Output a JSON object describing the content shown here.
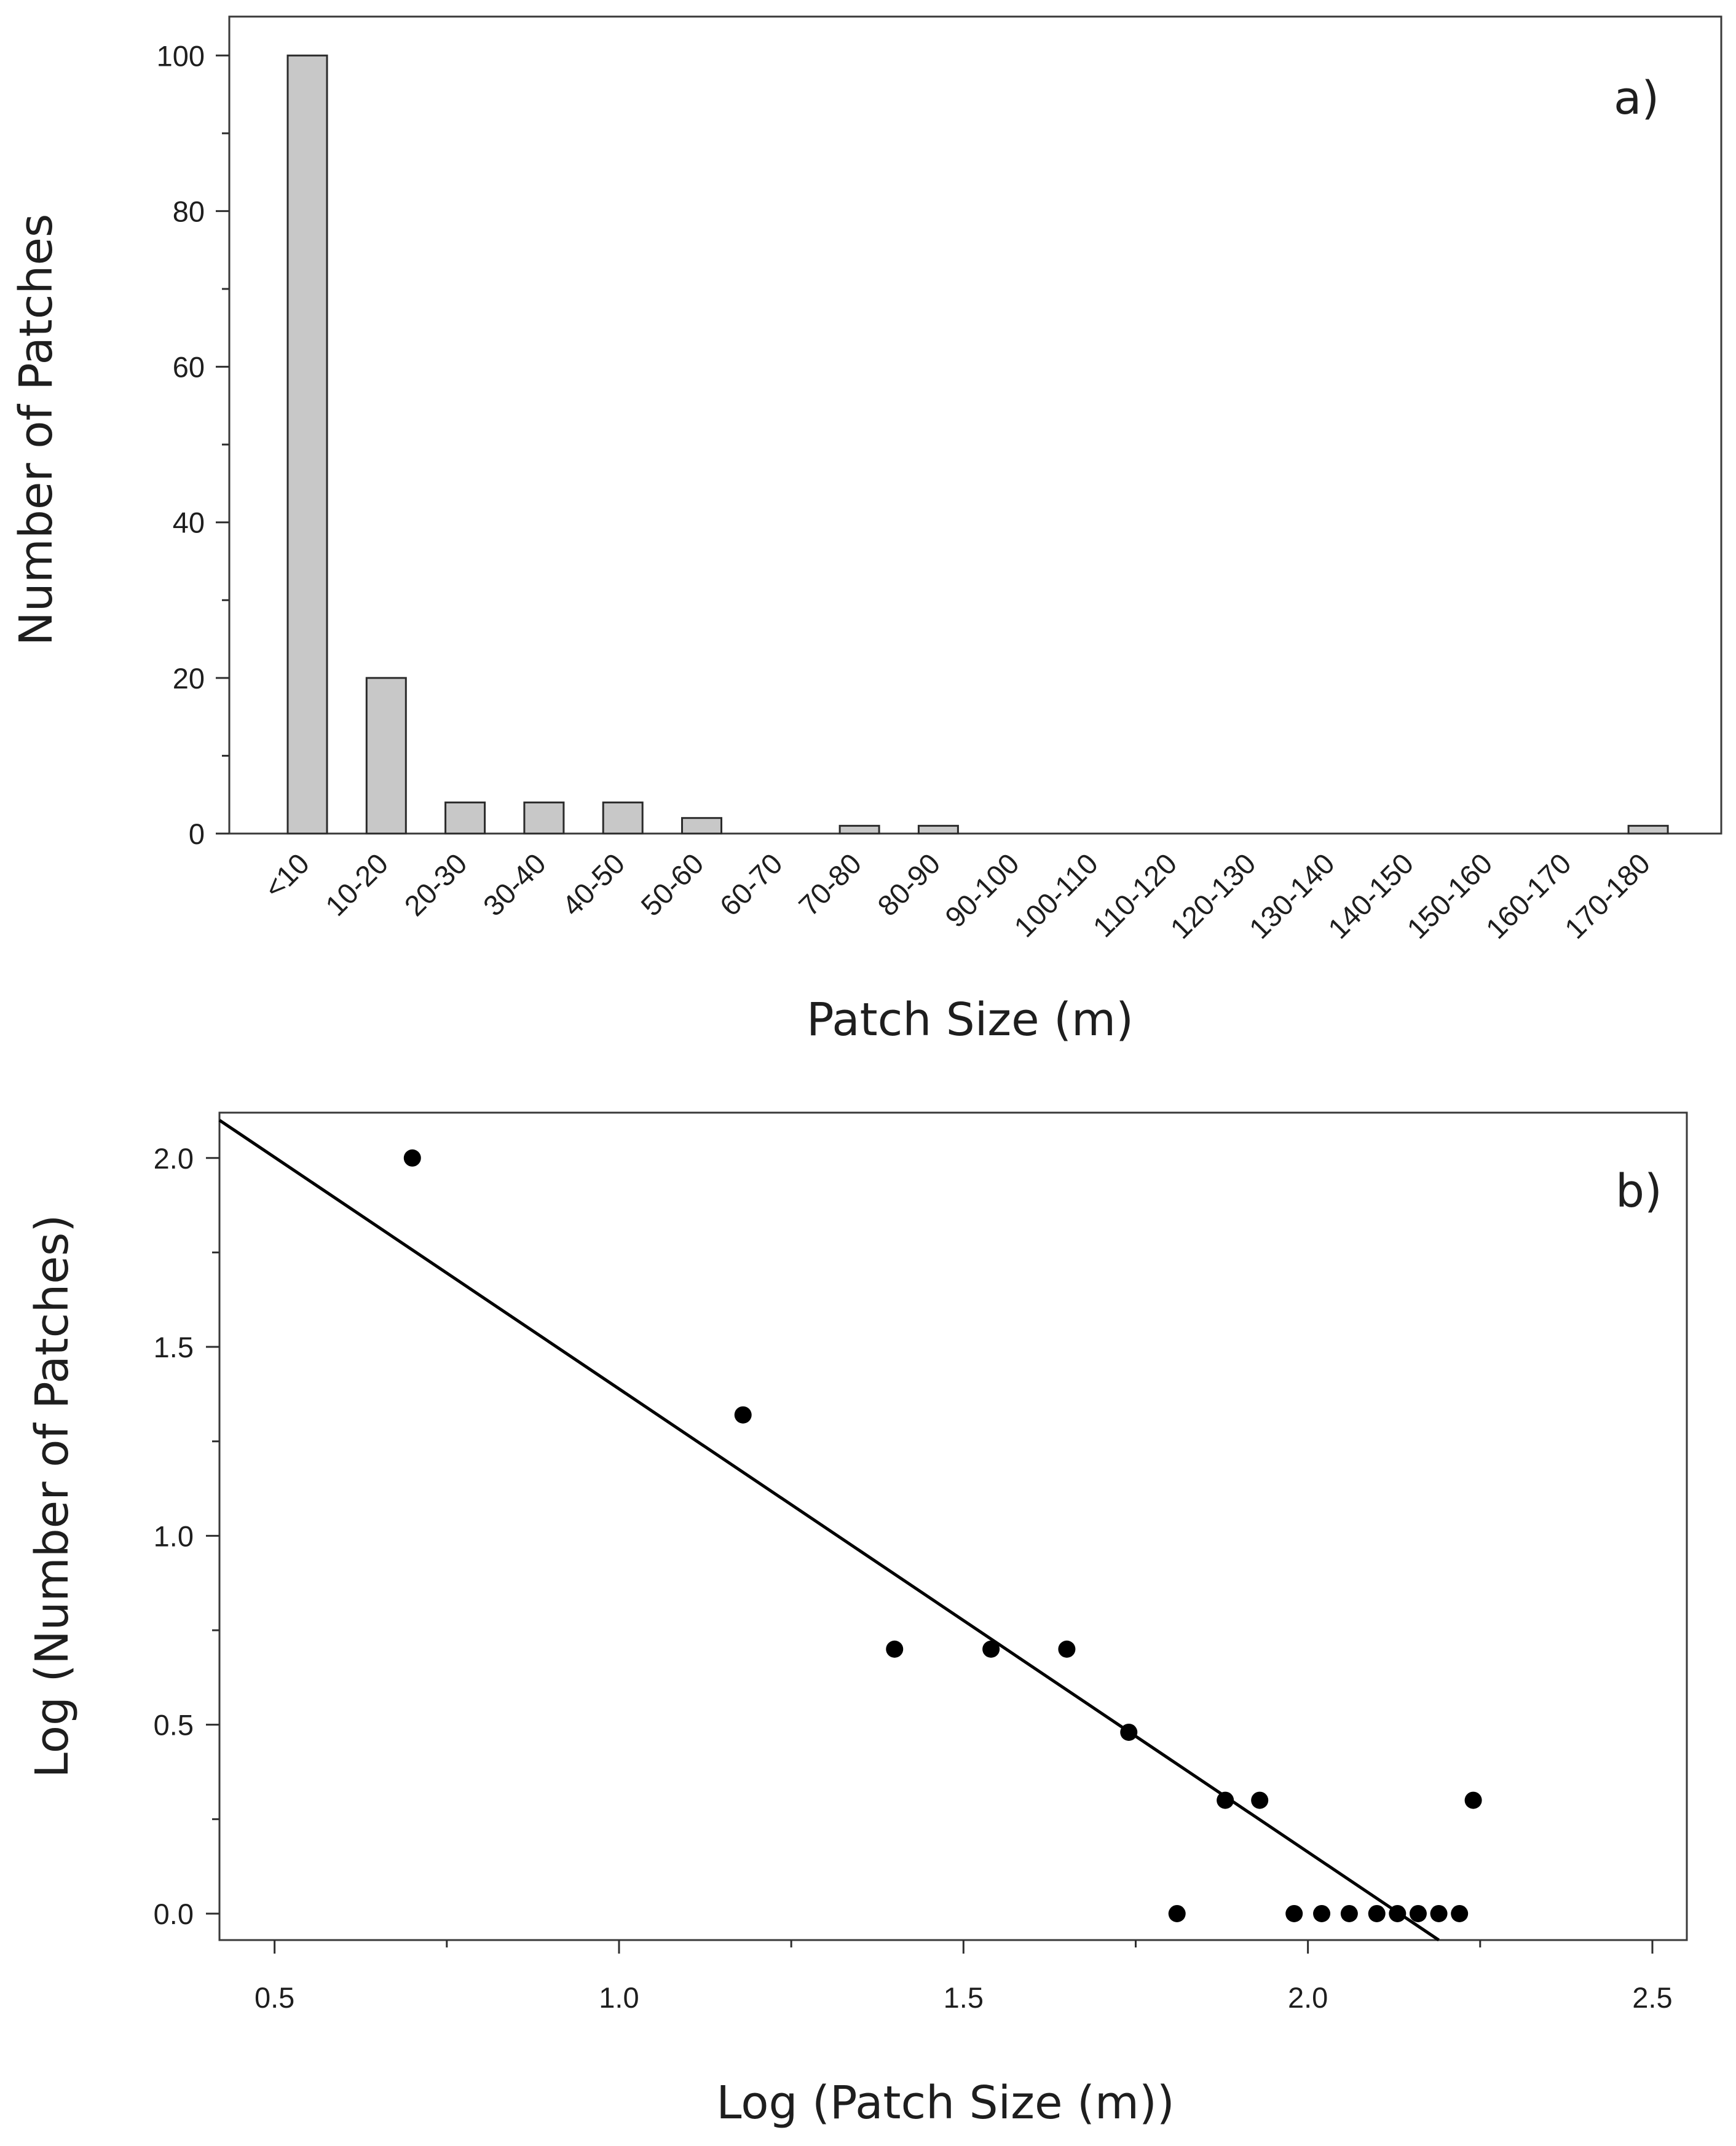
{
  "chart_data": [
    {
      "type": "bar",
      "panel_label": "a)",
      "title": "",
      "xlabel": "Patch Size (m)",
      "ylabel": "Number of Patches",
      "categories": [
        "<10",
        "10-20",
        "20-30",
        "30-40",
        "40-50",
        "50-60",
        "60-70",
        "70-80",
        "80-90",
        "90-100",
        "100-110",
        "110-120",
        "120-130",
        "130-140",
        "140-150",
        "150-160",
        "160-170",
        "170-180"
      ],
      "values": [
        100,
        20,
        4,
        4,
        4,
        2,
        0,
        1,
        1,
        0,
        0,
        0,
        0,
        0,
        0,
        0,
        0,
        1
      ],
      "ylim": [
        0,
        105
      ],
      "yticks": [
        0,
        20,
        40,
        60,
        80,
        100
      ],
      "ytick_labels": [
        "0",
        "20",
        "40",
        "60",
        "80",
        "100"
      ],
      "grid": false,
      "colors": {
        "bar_fill": "#c8c8c8",
        "bar_stroke": "#2b2b2b"
      }
    },
    {
      "type": "scatter",
      "panel_label": "b)",
      "title": "",
      "xlabel": "Log (Patch Size (m))",
      "ylabel": "Log (Number of Patches)",
      "x": [
        0.7,
        1.18,
        1.4,
        1.54,
        1.65,
        1.74,
        1.81,
        1.88,
        1.93,
        1.98,
        2.02,
        2.06,
        2.1,
        2.13,
        2.16,
        2.19,
        2.22,
        2.24
      ],
      "y": [
        2.0,
        1.32,
        0.7,
        0.7,
        0.7,
        0.48,
        0.0,
        0.3,
        0.3,
        0.0,
        0.0,
        0.0,
        0.0,
        0.0,
        0.0,
        0.0,
        0.0,
        0.3
      ],
      "fit_line": {
        "x": [
          0.42,
          2.19
        ],
        "y": [
          2.1,
          -0.07
        ]
      },
      "xlim": [
        0.42,
        2.55
      ],
      "ylim": [
        -0.07,
        2.12
      ],
      "xticks": [
        0.5,
        1.0,
        1.5,
        2.0,
        2.5
      ],
      "xtick_labels": [
        "0.5",
        "1.0",
        "1.5",
        "2.0",
        "2.5"
      ],
      "yticks": [
        0.0,
        0.5,
        1.0,
        1.5,
        2.0
      ],
      "ytick_labels": [
        "0.0",
        "0.5",
        "1.0",
        "1.5",
        "2.0"
      ],
      "grid": false,
      "colors": {
        "point": "#000000",
        "line": "#000000"
      }
    }
  ]
}
